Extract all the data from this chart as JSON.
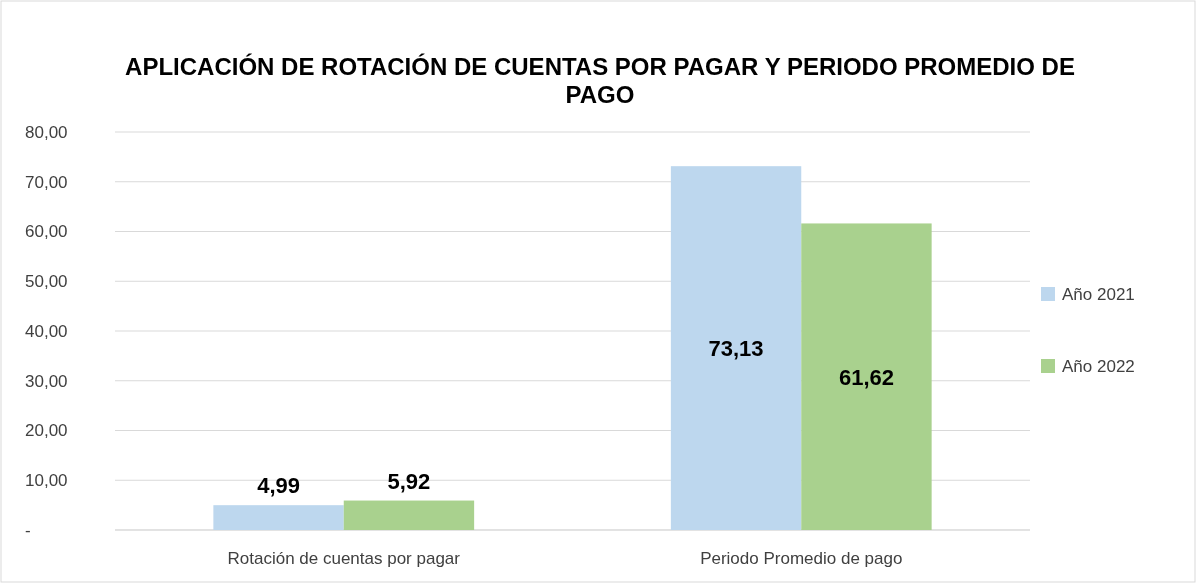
{
  "chart_data": {
    "type": "bar",
    "title": "APLICACIÓN DE ROTACIÓN DE CUENTAS POR PAGAR Y PERIODO PROMEDIO DE PAGO",
    "categories": [
      "Rotación de cuentas por pagar",
      "Periodo Promedio de pago"
    ],
    "series": [
      {
        "name": "Año 2021",
        "color": "#bdd7ee",
        "values": [
          4.99,
          73.13
        ],
        "value_labels": [
          "4,99",
          "73,13"
        ]
      },
      {
        "name": "Año 2022",
        "color": "#a9d18e",
        "values": [
          5.92,
          61.62
        ],
        "value_labels": [
          "5,92",
          "61,62"
        ]
      }
    ],
    "ylim": [
      0,
      80
    ],
    "yticks": [
      {
        "value": 0,
        "label": "-"
      },
      {
        "value": 10,
        "label": "10,00"
      },
      {
        "value": 20,
        "label": "20,00"
      },
      {
        "value": 30,
        "label": "30,00"
      },
      {
        "value": 40,
        "label": "40,00"
      },
      {
        "value": 50,
        "label": "50,00"
      },
      {
        "value": 60,
        "label": "60,00"
      },
      {
        "value": 70,
        "label": "70,00"
      },
      {
        "value": 80,
        "label": "80,00"
      }
    ],
    "grid": "y",
    "legend": "right"
  }
}
